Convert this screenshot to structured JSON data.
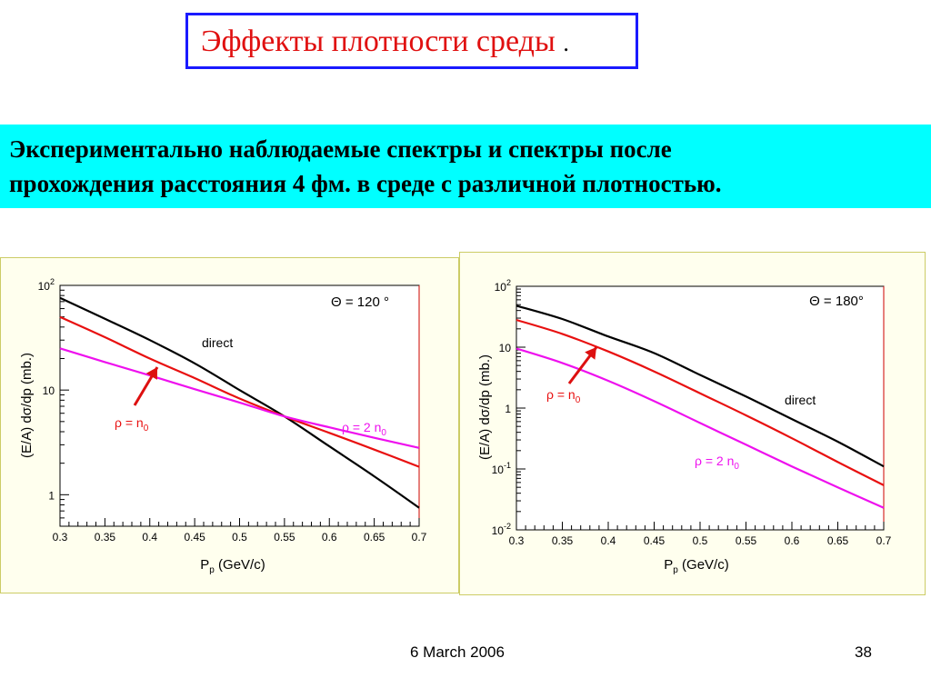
{
  "slide": {
    "title": "Эффекты плотности среды",
    "title_suffix": ".",
    "subtitle_line1": "Экспериментально наблюдаемые спектры и спектры после",
    "subtitle_line2": "прохождения расстояния 4 фм. в среде с различной плотностью.",
    "footer_date": "6 March 2006",
    "footer_page": "38"
  },
  "colors": {
    "title_red": "#e01010",
    "title_border": "#1a1aff",
    "banner_cyan": "#00ffff",
    "direct": "#000000",
    "rho_n0": "#e81010",
    "rho_2n0": "#ee10ee"
  },
  "chart_data": [
    {
      "type": "line",
      "angle_label": "Θ = 120 °",
      "xlabel_main": "P",
      "xlabel_sub": "p",
      "xlabel_rest": " (GeV/c)",
      "ylabel": "(E/A) dσ/dp (mb.)",
      "y_scale": "log",
      "xlim": [
        0.3,
        0.7
      ],
      "ylim": [
        0.5,
        100
      ],
      "x_ticks": [
        "0.3",
        "0.35",
        "0.4",
        "0.45",
        "0.5",
        "0.55",
        "0.6",
        "0.65",
        "0.7"
      ],
      "y_ticks": [
        {
          "value": 100,
          "base": "10",
          "exp": "2"
        },
        {
          "value": 10,
          "base": "10",
          "exp": ""
        },
        {
          "value": 1,
          "base": "1",
          "exp": ""
        }
      ],
      "series": [
        {
          "name": "direct",
          "color": "#000000",
          "x": [
            0.3,
            0.35,
            0.4,
            0.45,
            0.5,
            0.55,
            0.6,
            0.65,
            0.7
          ],
          "y": [
            76,
            48,
            30,
            18,
            10,
            5.6,
            2.9,
            1.5,
            0.75
          ]
        },
        {
          "name": "ρ = n0",
          "color": "#e81010",
          "x": [
            0.3,
            0.35,
            0.4,
            0.45,
            0.5,
            0.55,
            0.6,
            0.65,
            0.7
          ],
          "y": [
            50,
            32,
            20,
            13,
            8.3,
            5.6,
            3.9,
            2.7,
            1.85
          ]
        },
        {
          "name": "ρ = 2 n0",
          "color": "#ee10ee",
          "x": [
            0.3,
            0.35,
            0.4,
            0.45,
            0.5,
            0.55,
            0.6,
            0.65,
            0.7
          ],
          "y": [
            25,
            18.5,
            13.8,
            10.2,
            7.6,
            5.6,
            4.4,
            3.5,
            2.8
          ]
        }
      ],
      "labels": [
        {
          "text": "direct",
          "sub": "",
          "color": "#000000"
        },
        {
          "text": "ρ = n",
          "sub": "0",
          "color": "#e81010"
        },
        {
          "text": "ρ = 2 n",
          "sub": "0",
          "color": "#ee10ee"
        }
      ]
    },
    {
      "type": "line",
      "angle_label": "Θ = 180°",
      "xlabel_main": "P",
      "xlabel_sub": "p",
      "xlabel_rest": " (GeV/c)",
      "ylabel": "(E/A) dσ/dp (mb.)",
      "y_scale": "log",
      "xlim": [
        0.3,
        0.7
      ],
      "ylim": [
        0.01,
        100
      ],
      "x_ticks": [
        "0.3",
        "0.35",
        "0.4",
        "0.45",
        "0.5",
        "0.55",
        "0.6",
        "0.65",
        "0.7"
      ],
      "y_ticks": [
        {
          "value": 100,
          "base": "10",
          "exp": "2"
        },
        {
          "value": 10,
          "base": "10",
          "exp": ""
        },
        {
          "value": 1,
          "base": "1",
          "exp": ""
        },
        {
          "value": 0.1,
          "base": "10",
          "exp": "-1"
        },
        {
          "value": 0.01,
          "base": "10",
          "exp": "-2"
        }
      ],
      "series": [
        {
          "name": "direct",
          "color": "#000000",
          "x": [
            0.3,
            0.35,
            0.4,
            0.45,
            0.5,
            0.55,
            0.6,
            0.65,
            0.7
          ],
          "y": [
            48,
            29,
            15,
            8,
            3.5,
            1.55,
            0.66,
            0.28,
            0.11
          ]
        },
        {
          "name": "ρ = n0",
          "color": "#e81010",
          "x": [
            0.3,
            0.35,
            0.4,
            0.45,
            0.5,
            0.55,
            0.6,
            0.65,
            0.7
          ],
          "y": [
            28,
            16.5,
            8.5,
            4,
            1.75,
            0.76,
            0.32,
            0.13,
            0.054
          ]
        },
        {
          "name": "ρ = 2 n0",
          "color": "#ee10ee",
          "x": [
            0.3,
            0.35,
            0.4,
            0.45,
            0.5,
            0.55,
            0.6,
            0.65,
            0.7
          ],
          "y": [
            9.5,
            5.5,
            2.8,
            1.3,
            0.57,
            0.25,
            0.11,
            0.05,
            0.023
          ]
        }
      ],
      "labels": [
        {
          "text": "direct",
          "sub": "",
          "color": "#000000"
        },
        {
          "text": "ρ = n",
          "sub": "0",
          "color": "#e81010"
        },
        {
          "text": "ρ = 2 n",
          "sub": "0",
          "color": "#ee10ee"
        }
      ]
    }
  ]
}
